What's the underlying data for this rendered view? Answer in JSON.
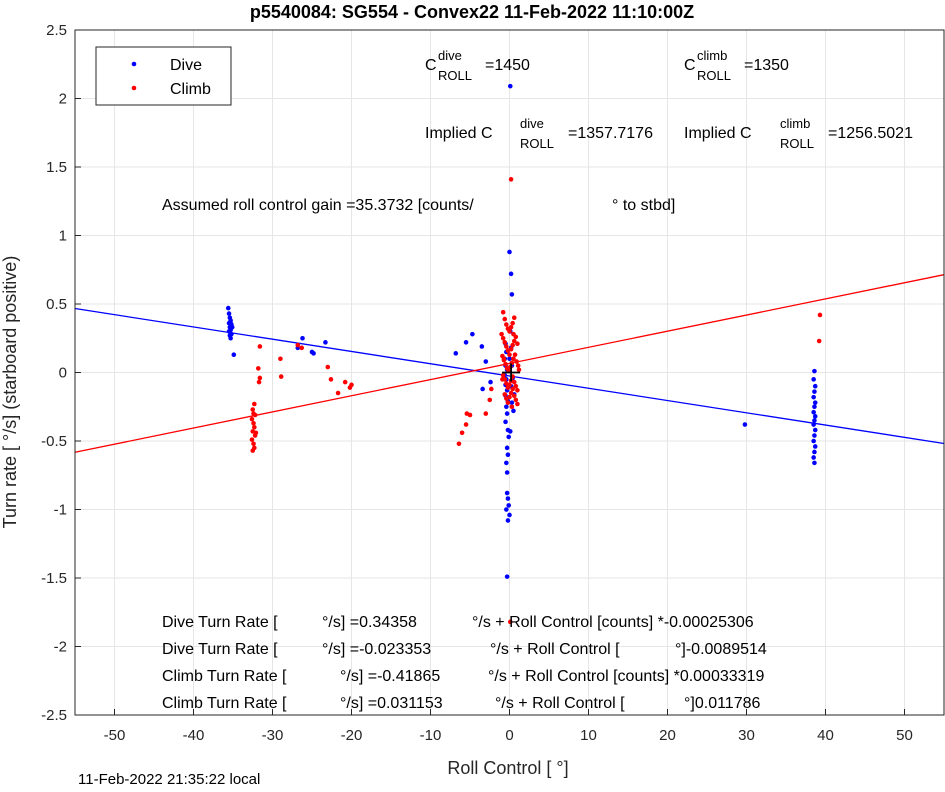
{
  "chart_data": {
    "type": "scatter",
    "title": "p5540084: SG554 - Convex22 11-Feb-2022 11:10:00Z",
    "xlabel": "Roll Control [   °]",
    "ylabel": "Turn rate [   °/s] (starboard positive)",
    "xlim": [
      -55,
      55
    ],
    "ylim": [
      -2.5,
      2.5
    ],
    "xticks": [
      -50,
      -40,
      -30,
      -20,
      -10,
      0,
      10,
      20,
      30,
      40,
      50
    ],
    "yticks": [
      -2.5,
      -2,
      -1.5,
      -1,
      -0.5,
      0,
      0.5,
      1,
      1.5,
      2,
      2.5
    ],
    "xtick_labels": [
      "-50",
      "-40",
      "-30",
      "-20",
      "-10",
      "0",
      "10",
      "20",
      "30",
      "40",
      "50"
    ],
    "ytick_labels": [
      "-2.5",
      "-2",
      "-1.5",
      "-1",
      "-0.5",
      "0",
      "0.5",
      "1",
      "1.5",
      "2",
      "2.5"
    ],
    "grid": true,
    "legend_position": "top-left",
    "series": [
      {
        "name": "Dive",
        "color": "#0000ff",
        "points": [
          [
            -35.6,
            0.47
          ],
          [
            -35.5,
            0.43
          ],
          [
            -35.4,
            0.4
          ],
          [
            -35.3,
            0.38
          ],
          [
            -35.5,
            0.36
          ],
          [
            -35.2,
            0.35
          ],
          [
            -35.4,
            0.33
          ],
          [
            -35.3,
            0.31
          ],
          [
            -35.5,
            0.3
          ],
          [
            -35.2,
            0.28
          ],
          [
            -35.4,
            0.27
          ],
          [
            -35.3,
            0.25
          ],
          [
            -35.1,
            0.33
          ],
          [
            -35.3,
            0.36
          ],
          [
            -34.9,
            0.13
          ],
          [
            -26.8,
            0.18
          ],
          [
            -26.2,
            0.25
          ],
          [
            -25.0,
            0.15
          ],
          [
            -24.8,
            0.14
          ],
          [
            -23.3,
            0.22
          ],
          [
            -6.8,
            0.14
          ],
          [
            -5.5,
            0.22
          ],
          [
            -4.7,
            0.28
          ],
          [
            -3.5,
            0.19
          ],
          [
            -3.0,
            0.08
          ],
          [
            -3.4,
            -0.12
          ],
          [
            -2.4,
            -0.07
          ],
          [
            -0.5,
            0.21
          ],
          [
            -0.4,
            0.15
          ],
          [
            -0.6,
            0.1
          ],
          [
            -0.5,
            0.05
          ],
          [
            -0.3,
            0.02
          ],
          [
            -0.6,
            -0.02
          ],
          [
            -0.4,
            -0.05
          ],
          [
            -0.5,
            -0.09
          ],
          [
            -0.3,
            -0.13
          ],
          [
            -0.5,
            -0.17
          ],
          [
            -0.2,
            -0.21
          ],
          [
            -0.4,
            -0.25
          ],
          [
            -0.3,
            -0.3
          ],
          [
            -0.5,
            -0.36
          ],
          [
            -0.2,
            -0.42
          ],
          [
            -0.1,
            -0.47
          ],
          [
            -0.3,
            -0.55
          ],
          [
            -0.2,
            -0.6
          ],
          [
            -0.4,
            -0.66
          ],
          [
            -0.3,
            -0.73
          ],
          [
            0.1,
            0.3
          ],
          [
            0.2,
            0.18
          ],
          [
            0.0,
            0.1
          ],
          [
            0.3,
            0.05
          ],
          [
            0.4,
            -0.04
          ],
          [
            0.2,
            -0.1
          ],
          [
            0.6,
            -0.16
          ],
          [
            0.3,
            -0.22
          ],
          [
            0.5,
            -0.28
          ],
          [
            0.1,
            2.09
          ],
          [
            0.0,
            0.88
          ],
          [
            0.2,
            0.72
          ],
          [
            0.3,
            0.57
          ],
          [
            0.1,
            -0.43
          ],
          [
            -0.3,
            -0.88
          ],
          [
            -0.2,
            -0.92
          ],
          [
            -0.1,
            -0.97
          ],
          [
            -0.4,
            -1.0
          ],
          [
            0.0,
            -1.04
          ],
          [
            -0.2,
            -1.08
          ],
          [
            -0.3,
            -1.49
          ],
          [
            29.8,
            -0.38
          ],
          [
            38.6,
            0.01
          ],
          [
            38.5,
            -0.05
          ],
          [
            38.7,
            -0.1
          ],
          [
            38.6,
            -0.14
          ],
          [
            38.5,
            -0.18
          ],
          [
            38.7,
            -0.22
          ],
          [
            38.6,
            -0.25
          ],
          [
            38.5,
            -0.29
          ],
          [
            38.7,
            -0.32
          ],
          [
            38.6,
            -0.35
          ],
          [
            38.5,
            -0.38
          ],
          [
            38.7,
            -0.42
          ],
          [
            38.6,
            -0.46
          ],
          [
            38.5,
            -0.5
          ],
          [
            38.7,
            -0.54
          ],
          [
            38.6,
            -0.58
          ],
          [
            38.5,
            -0.62
          ],
          [
            38.6,
            -0.66
          ]
        ]
      },
      {
        "name": "Climb",
        "color": "#ff0000",
        "points": [
          [
            -32.3,
            -0.23
          ],
          [
            -32.5,
            -0.27
          ],
          [
            -32.2,
            -0.31
          ],
          [
            -32.6,
            -0.34
          ],
          [
            -32.4,
            -0.37
          ],
          [
            -32.3,
            -0.4
          ],
          [
            -32.5,
            -0.43
          ],
          [
            -32.2,
            -0.46
          ],
          [
            -32.6,
            -0.49
          ],
          [
            -32.4,
            -0.52
          ],
          [
            -32.3,
            -0.55
          ],
          [
            -32.5,
            -0.57
          ],
          [
            -32.1,
            -0.44
          ],
          [
            -32.4,
            -0.3
          ],
          [
            -31.6,
            0.19
          ],
          [
            -31.8,
            0.03
          ],
          [
            -31.6,
            -0.04
          ],
          [
            -31.7,
            -0.07
          ],
          [
            -29.0,
            0.1
          ],
          [
            -28.9,
            -0.03
          ],
          [
            -26.8,
            0.2
          ],
          [
            -26.3,
            0.18
          ],
          [
            -23.0,
            0.04
          ],
          [
            -22.6,
            -0.05
          ],
          [
            -21.7,
            -0.15
          ],
          [
            -20.8,
            -0.07
          ],
          [
            -20.2,
            -0.11
          ],
          [
            -20.0,
            -0.09
          ],
          [
            -6.4,
            -0.52
          ],
          [
            -6.0,
            -0.44
          ],
          [
            -5.5,
            -0.38
          ],
          [
            -5.4,
            -0.3
          ],
          [
            -5.0,
            -0.31
          ],
          [
            -3.0,
            -0.3
          ],
          [
            -2.5,
            -0.2
          ],
          [
            -2.3,
            -0.12
          ],
          [
            -1.0,
            0.28
          ],
          [
            -0.7,
            0.1
          ],
          [
            -0.9,
            -0.05
          ],
          [
            -0.8,
            0.44
          ],
          [
            -0.6,
            0.39
          ],
          [
            -0.4,
            0.35
          ],
          [
            -0.2,
            0.32
          ],
          [
            0.0,
            0.3
          ],
          [
            0.2,
            0.33
          ],
          [
            0.4,
            0.36
          ],
          [
            0.6,
            0.4
          ],
          [
            0.5,
            0.28
          ],
          [
            -0.8,
            0.25
          ],
          [
            -0.6,
            0.22
          ],
          [
            -0.4,
            0.19
          ],
          [
            -0.2,
            0.16
          ],
          [
            0.0,
            0.13
          ],
          [
            0.2,
            0.17
          ],
          [
            0.4,
            0.2
          ],
          [
            0.6,
            0.23
          ],
          [
            0.8,
            0.26
          ],
          [
            1.0,
            0.21
          ],
          [
            -0.9,
            0.12
          ],
          [
            -0.7,
            0.09
          ],
          [
            -0.5,
            0.06
          ],
          [
            -0.3,
            0.03
          ],
          [
            -0.1,
            0.01
          ],
          [
            0.1,
            0.04
          ],
          [
            0.3,
            0.07
          ],
          [
            0.5,
            0.1
          ],
          [
            0.7,
            0.13
          ],
          [
            0.9,
            0.08
          ],
          [
            1.1,
            0.05
          ],
          [
            -0.8,
            -0.02
          ],
          [
            -0.6,
            -0.05
          ],
          [
            -0.4,
            -0.08
          ],
          [
            -0.2,
            -0.11
          ],
          [
            0.0,
            -0.09
          ],
          [
            0.2,
            -0.06
          ],
          [
            0.4,
            -0.03
          ],
          [
            0.6,
            -0.07
          ],
          [
            0.8,
            -0.1
          ],
          [
            1.0,
            -0.13
          ],
          [
            1.2,
            0.02
          ],
          [
            -0.6,
            -0.16
          ],
          [
            -0.4,
            -0.19
          ],
          [
            -0.2,
            -0.22
          ],
          [
            0.0,
            -0.18
          ],
          [
            0.2,
            -0.15
          ],
          [
            0.4,
            -0.12
          ],
          [
            0.6,
            -0.17
          ],
          [
            0.8,
            -0.2
          ],
          [
            1.0,
            -0.23
          ],
          [
            0.3,
            -0.25
          ],
          [
            0.2,
            1.41
          ],
          [
            0.1,
            -1.82
          ],
          [
            39.3,
            0.42
          ],
          [
            39.2,
            0.23
          ]
        ]
      }
    ],
    "fit_lines": [
      {
        "series": "Dive",
        "color": "#0000ff",
        "x": [
          -55,
          55
        ],
        "y": [
          0.467,
          -0.518
        ]
      },
      {
        "series": "Climb",
        "color": "#ff0000",
        "x": [
          -55,
          55
        ],
        "y": [
          -0.582,
          0.714
        ]
      }
    ],
    "center_marker": {
      "x": 0.2,
      "y": 0.0,
      "color": "#000000"
    },
    "annotations": {
      "c_dive_base": "C",
      "c_dive_sup": "dive",
      "c_dive_sub": "ROLL",
      "c_dive_val": "=1450",
      "c_climb_base": "C",
      "c_climb_sup": "climb",
      "c_climb_sub": "ROLL",
      "c_climb_val": "=1350",
      "implied_dive_base": "Implied C",
      "implied_dive_sup": "dive",
      "implied_dive_sub": "ROLL",
      "implied_dive_val": "=1357.7176",
      "implied_climb_base": "Implied C",
      "implied_climb_sup": "climb",
      "implied_climb_sub": "ROLL",
      "implied_climb_val": "=1256.5021",
      "gain_a": "Assumed roll control gain =35.3732 [counts/",
      "gain_b": "° to stbd]",
      "eq1_a": "Dive Turn Rate [",
      "eq1_b": "°/s] =0.34358",
      "eq1_c": "°/s + Roll Control [counts] *-0.00025306",
      "eq2_a": "Dive Turn Rate [",
      "eq2_b": "°/s] =-0.023353",
      "eq2_c": "°/s + Roll Control [",
      "eq2_d": "°]-0.0089514",
      "eq3_a": "Climb Turn Rate [",
      "eq3_b": "°/s] =-0.41865",
      "eq3_c": "°/s + Roll Control [counts] *0.00033319",
      "eq4_a": "Climb Turn Rate [",
      "eq4_b": "°/s] =0.031153",
      "eq4_c": "°/s + Roll Control [",
      "eq4_d": "°]0.011786"
    }
  },
  "footer": {
    "timestamp": "11-Feb-2022 21:35:22 local"
  }
}
